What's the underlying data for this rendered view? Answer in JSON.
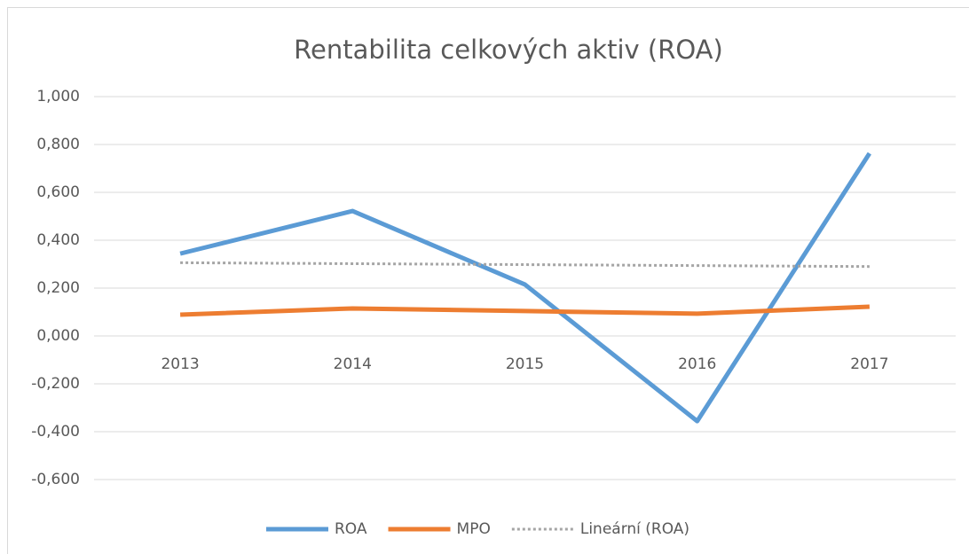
{
  "chart_data": {
    "type": "line",
    "title": "Rentabilita celkových aktiv (ROA)",
    "categories": [
      "2013",
      "2014",
      "2015",
      "2016",
      "2017"
    ],
    "series": [
      {
        "name": "ROA",
        "color": "#5b9bd5",
        "values": [
          0.344,
          0.522,
          0.215,
          -0.356,
          0.763
        ]
      },
      {
        "name": "MPO",
        "color": "#ed7d31",
        "values": [
          0.089,
          0.115,
          0.104,
          0.093,
          0.122
        ]
      },
      {
        "name": "Lineární (ROA)",
        "color": "#a5a5a5",
        "dashed": true,
        "values": [
          0.306,
          0.302,
          0.298,
          0.294,
          0.29
        ]
      }
    ],
    "ylim": [
      -0.6,
      1.0
    ],
    "yticks": [
      {
        "value": -0.6,
        "label": "-0,600"
      },
      {
        "value": -0.4,
        "label": "-0,400"
      },
      {
        "value": -0.2,
        "label": "-0,200"
      },
      {
        "value": 0,
        "label": "0,000"
      },
      {
        "value": 0.2,
        "label": "0,200"
      },
      {
        "value": 0.4,
        "label": "0,400"
      },
      {
        "value": 0.6,
        "label": "0,600"
      },
      {
        "value": 0.8,
        "label": "0,800"
      },
      {
        "value": 1.0,
        "label": "1,000"
      }
    ],
    "grid": true,
    "legend": "bottom"
  }
}
